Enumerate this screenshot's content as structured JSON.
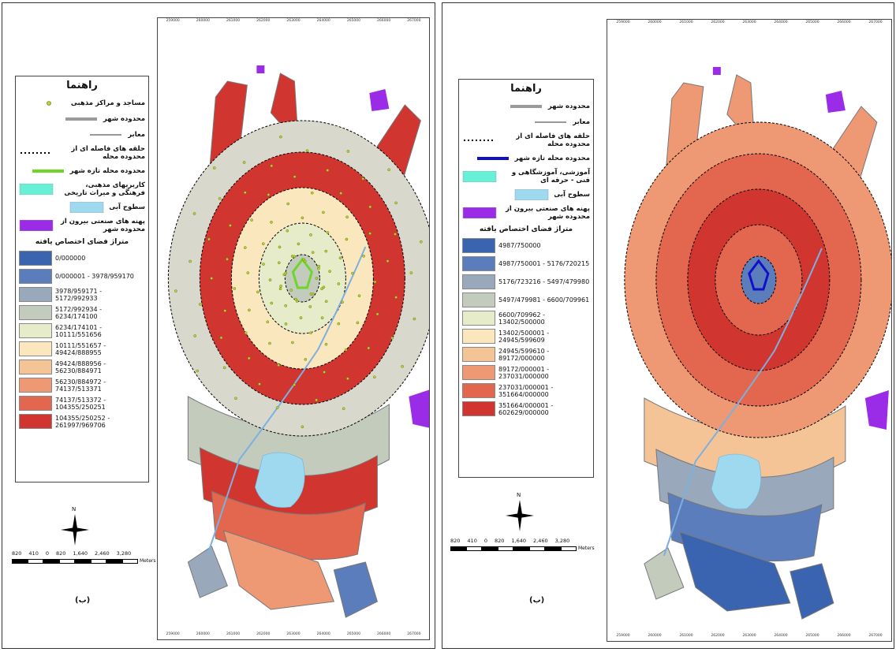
{
  "maps": [
    {
      "id": "left",
      "legend": {
        "title": "راهنما",
        "items": [
          {
            "label": "مساجد و مراکز مذهبی",
            "symbol": "dot",
            "color": "#b7d334"
          },
          {
            "label": "محدوده شهر",
            "symbol": "line-gray",
            "color": "#9a9a9a"
          },
          {
            "label": "معابر",
            "symbol": "line-thin",
            "color": "#333333"
          },
          {
            "label": "حلقه های فاصله ای از محدوده محله",
            "symbol": "dashed",
            "color": "#000000"
          },
          {
            "label": "محدوده محله تازه شهر",
            "symbol": "line-green",
            "color": "#6fd629"
          },
          {
            "label": "کاربریهای مذهبی، فرهنگی و میراث تاریخی",
            "symbol": "fill",
            "color": "#66f0d8"
          },
          {
            "label": "سطوح آبی",
            "symbol": "fill",
            "color": "#9fd9f0"
          },
          {
            "label": "پهنه های صنعتی بیرون از محدوده شهر",
            "symbol": "fill",
            "color": "#9a2ce8"
          }
        ],
        "classes_title": "متراژ فضای اختصاص یافته",
        "classes": [
          {
            "label": "0/000000",
            "color": "#3a63b0"
          },
          {
            "label": "0/000001 - 3978/959170",
            "color": "#5b7dbb"
          },
          {
            "label": "3978/959171 - 5172/992933",
            "color": "#99a9bb"
          },
          {
            "label": "5172/992934 - 6234/174100",
            "color": "#c3cbbd"
          },
          {
            "label": "6234/174101 - 10111/551656",
            "color": "#e6ebc9"
          },
          {
            "label": "10111/551657 - 49424/888955",
            "color": "#fbe7bd"
          },
          {
            "label": "49424/888956 - 56230/884971",
            "color": "#f5c496"
          },
          {
            "label": "56230/884972 - 74137/513371",
            "color": "#ee9973"
          },
          {
            "label": "74137/513372 - 104355/250251",
            "color": "#e2674e"
          },
          {
            "label": "104355/250252 - 261997/969706",
            "color": "#d13530"
          }
        ]
      },
      "scale": {
        "labels": [
          "820",
          "410",
          "0",
          "820",
          "1,640",
          "2,460",
          "3,280"
        ],
        "unit": "Meters"
      },
      "north_label": "N",
      "caption": "(ب)",
      "grid_top": [
        "259000",
        "260000",
        "261000",
        "262000",
        "263000",
        "264000",
        "265000",
        "266000",
        "267000"
      ],
      "grid_bottom": [
        "259000",
        "260000",
        "261000",
        "262000",
        "263000",
        "264000",
        "265000",
        "266000",
        "267000"
      ],
      "rings": [
        {
          "color": "#d8d8cd",
          "zone": "outer-bottom"
        },
        {
          "color": "#d13530",
          "zone": "ring-1"
        },
        {
          "color": "#fbe7bd",
          "zone": "ring-2"
        },
        {
          "color": "#e6ebc9",
          "zone": "ring-3"
        },
        {
          "color": "#c3cbbd",
          "zone": "core"
        }
      ],
      "zone_colors": {
        "north_lobes": "#d13530",
        "south_band_1": "#c3cbbd",
        "south_band_2": "#d13530",
        "south_band_3": "#e2674e",
        "south_band_4": "#ee9973",
        "south_lobes": "#5b7dbb",
        "south_small": "#99a9bb"
      }
    },
    {
      "id": "right",
      "legend": {
        "title": "راهنما",
        "items": [
          {
            "label": "محدوده شهر",
            "symbol": "line-gray",
            "color": "#9a9a9a"
          },
          {
            "label": "معابر",
            "symbol": "line-thin",
            "color": "#333333"
          },
          {
            "label": "حلقه های فاصله ای از محدوده محله",
            "symbol": "dashed",
            "color": "#000000"
          },
          {
            "label": "محدوده محله تازه شهر",
            "symbol": "line-blue",
            "color": "#1010c8"
          },
          {
            "label": "آموزشی، آموزشگاهی و فنی - حرفه ای",
            "symbol": "fill",
            "color": "#66f0d8"
          },
          {
            "label": "سطوح آبی",
            "symbol": "fill",
            "color": "#9fd9f0"
          },
          {
            "label": "پهنه های صنعتی بیرون از محدوده شهر",
            "symbol": "fill",
            "color": "#9a2ce8"
          }
        ],
        "classes_title": "متراژ فضای اختصاص یافته",
        "classes": [
          {
            "label": "4987/750000",
            "color": "#3a63b0"
          },
          {
            "label": "4987/750001 - 5176/720215",
            "color": "#5b7dbb"
          },
          {
            "label": "5176/723216 - 5497/479980",
            "color": "#99a9bb"
          },
          {
            "label": "5497/479981 - 6600/709961",
            "color": "#c3cbbd"
          },
          {
            "label": "6600/709962 - 13402/500000",
            "color": "#e6ebc9"
          },
          {
            "label": "13402/500001 - 24945/599609",
            "color": "#fbe7bd"
          },
          {
            "label": "24945/599610 - 89172/000000",
            "color": "#f5c496"
          },
          {
            "label": "89172/000001 - 237031/000000",
            "color": "#ee9973"
          },
          {
            "label": "237031/000001 - 351664/000000",
            "color": "#e2674e"
          },
          {
            "label": "351664/000001 - 602629/000000",
            "color": "#d13530"
          }
        ]
      },
      "scale": {
        "labels": [
          "820",
          "410",
          "0",
          "820",
          "1,640",
          "2,460",
          "3,280"
        ],
        "unit": "Meters"
      },
      "north_label": "N",
      "caption": "(ب)",
      "grid_top": [
        "259000",
        "260000",
        "261000",
        "262000",
        "263000",
        "264000",
        "265000",
        "266000",
        "267000"
      ],
      "grid_bottom": [
        "259000",
        "260000",
        "261000",
        "262000",
        "263000",
        "264000",
        "265000",
        "266000",
        "267000"
      ],
      "rings": [
        {
          "color": "#ee9973",
          "zone": "outer"
        },
        {
          "color": "#e2674e",
          "zone": "ring-1"
        },
        {
          "color": "#d13530",
          "zone": "ring-2"
        },
        {
          "color": "#e2674e",
          "zone": "ring-3"
        },
        {
          "color": "#5b7dbb",
          "zone": "core"
        }
      ],
      "zone_colors": {
        "north_lobes": "#ee9973",
        "south_band_1": "#f5c496",
        "south_band_2": "#99a9bb",
        "south_band_3": "#5b7dbb",
        "south_band_4": "#3a63b0",
        "south_lobes": "#3a63b0",
        "south_small": "#c3cbbd"
      }
    }
  ]
}
